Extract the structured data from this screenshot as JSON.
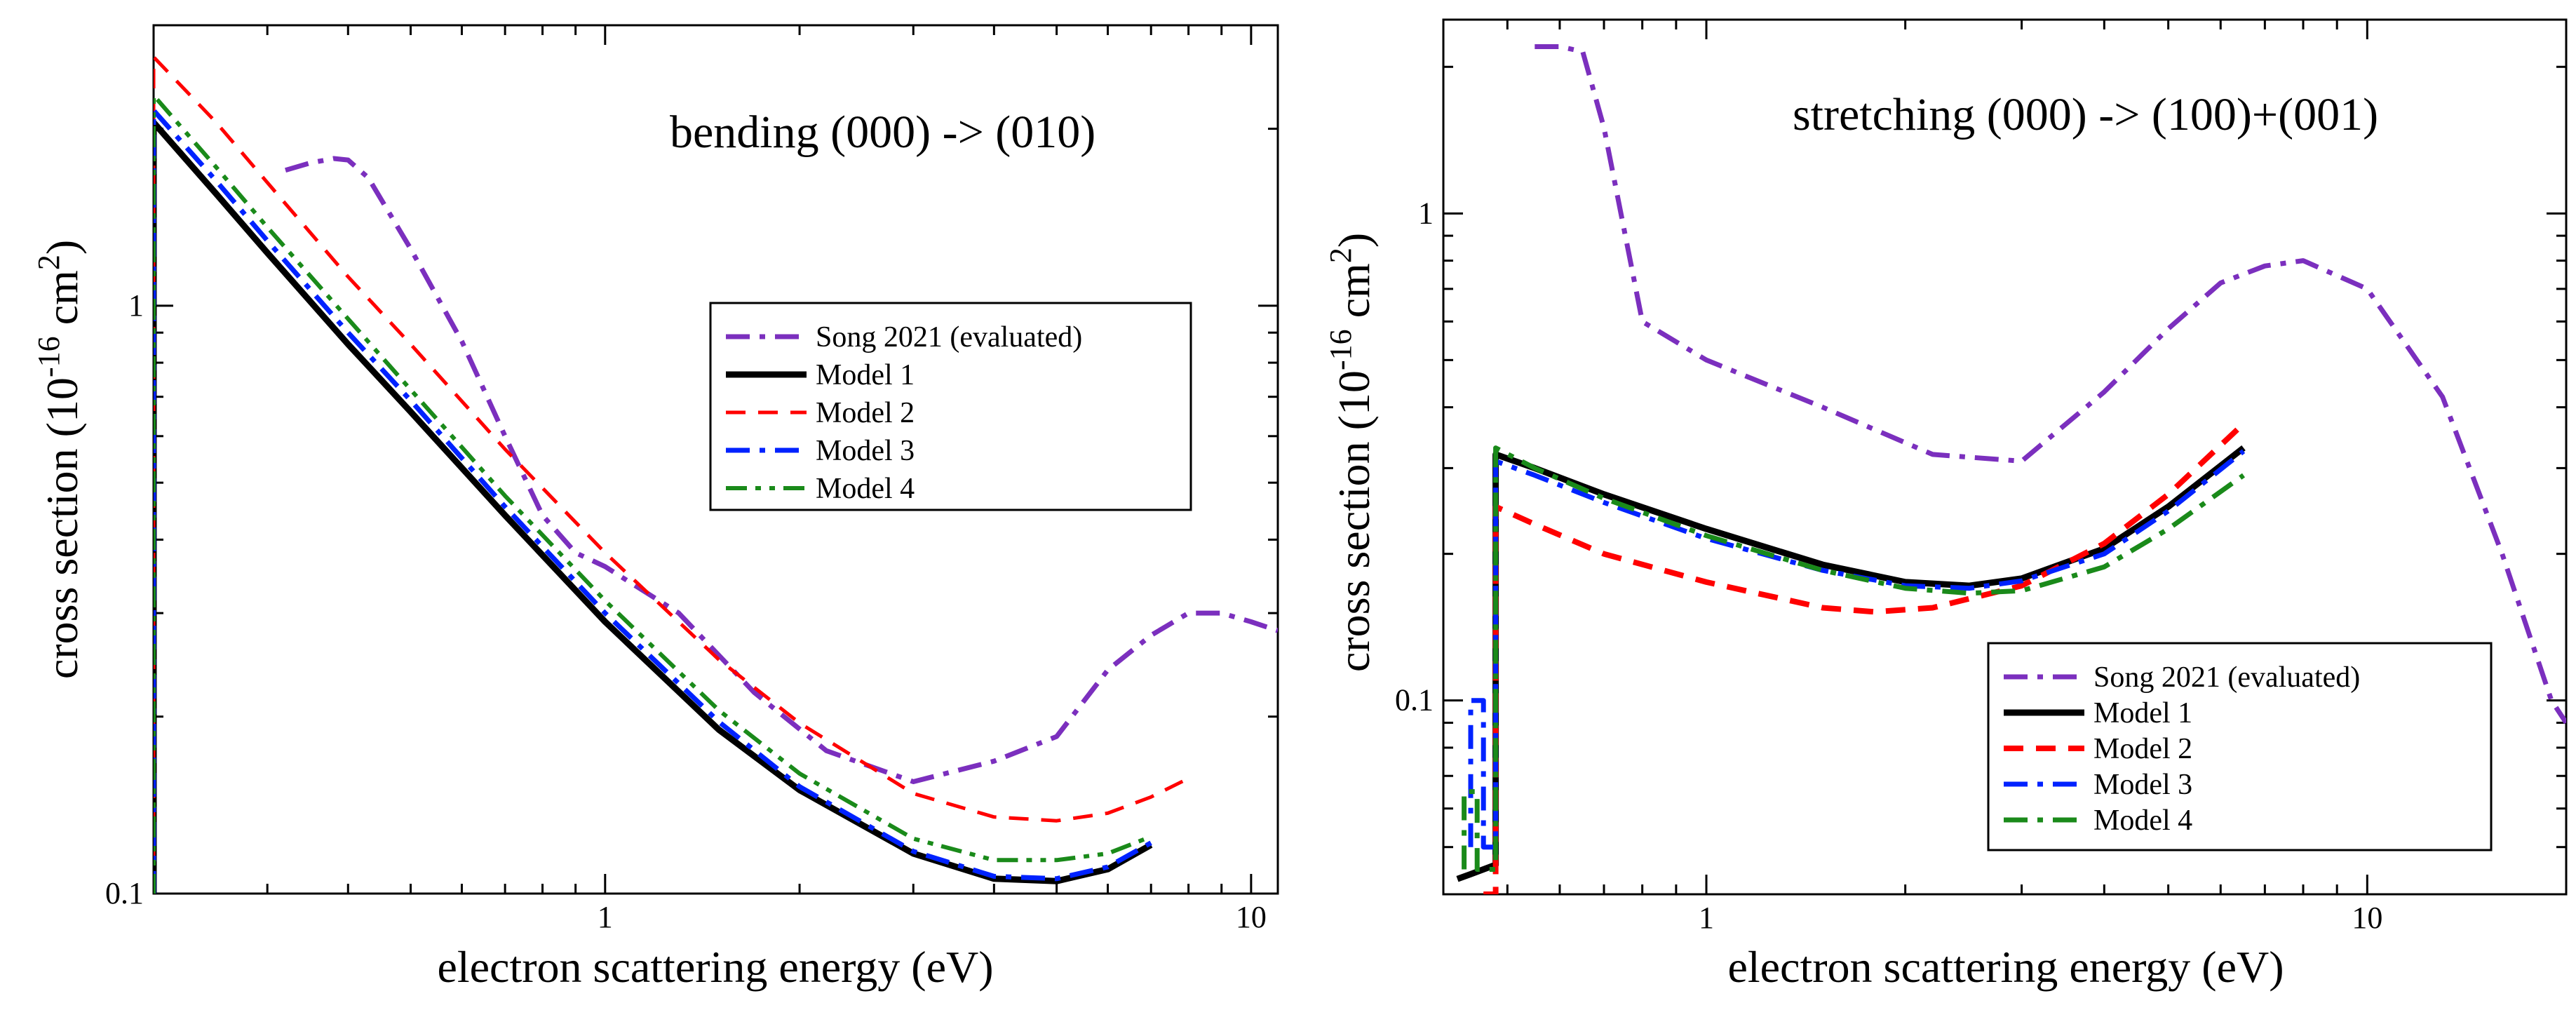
{
  "chart_data": [
    {
      "type": "line",
      "x_scale": "log",
      "y_scale": "log",
      "xlim": [
        0.2,
        11
      ],
      "ylim": [
        0.1,
        3.0
      ],
      "annotation": "bending (000) -> (010)",
      "xlabel": "electron scattering energy (eV)",
      "ylabel": "cross section (10^-16 cm^2)",
      "ylabel_parts": {
        "main": "cross section (10",
        "exp1": "-16",
        "unit": " cm",
        "exp2": "2",
        "close": ")"
      },
      "x_ticks": [
        {
          "value": 1,
          "label": "1"
        },
        {
          "value": 10,
          "label": "10"
        }
      ],
      "y_ticks": [
        {
          "value": 0.1,
          "label": "0.1"
        },
        {
          "value": 1,
          "label": "1"
        }
      ],
      "legend_position": "center-right",
      "series": [
        {
          "name": "Song 2021 (evaluated)",
          "color": "#7b2fbe",
          "dash": "dashdot",
          "width": 7,
          "x": [
            0.32,
            0.35,
            0.38,
            0.4,
            0.43,
            0.5,
            0.6,
            0.7,
            0.8,
            0.9,
            1.0,
            1.3,
            1.7,
            2.2,
            3.0,
            4.0,
            5.0,
            6.0,
            7.0,
            8.0,
            9.0,
            10.0,
            11.0
          ],
          "y": [
            1.7,
            1.75,
            1.78,
            1.77,
            1.65,
            1.25,
            0.87,
            0.6,
            0.44,
            0.38,
            0.36,
            0.3,
            0.22,
            0.175,
            0.155,
            0.168,
            0.185,
            0.24,
            0.275,
            0.3,
            0.3,
            0.29,
            0.28
          ]
        },
        {
          "name": "Model 1",
          "color": "#000000",
          "dash": "solid",
          "width": 9,
          "x": [
            0.199,
            0.2,
            0.2,
            0.25,
            0.3,
            0.4,
            0.5,
            0.7,
            1.0,
            1.5,
            2.0,
            3.0,
            4.0,
            5.0,
            6.0,
            7.0
          ],
          "y": [
            0.1,
            0.1,
            2.05,
            1.55,
            1.23,
            0.86,
            0.66,
            0.44,
            0.29,
            0.19,
            0.15,
            0.117,
            0.106,
            0.105,
            0.11,
            0.121
          ]
        },
        {
          "name": "Model 2",
          "color": "#ff0000",
          "dash": "dashed",
          "width": 5,
          "x": [
            0.199,
            0.2,
            0.2,
            0.25,
            0.3,
            0.4,
            0.5,
            0.7,
            1.0,
            1.5,
            2.0,
            3.0,
            4.0,
            5.0,
            6.0,
            7.0,
            8.0
          ],
          "y": [
            0.1,
            0.1,
            2.65,
            2.05,
            1.62,
            1.12,
            0.86,
            0.57,
            0.38,
            0.25,
            0.195,
            0.148,
            0.135,
            0.133,
            0.137,
            0.146,
            0.157
          ]
        },
        {
          "name": "Model 3",
          "color": "#0022ff",
          "dash": "dashdot",
          "width": 7,
          "x": [
            0.199,
            0.2,
            0.2,
            0.25,
            0.3,
            0.4,
            0.5,
            0.7,
            1.0,
            1.5,
            2.0,
            3.0,
            4.0,
            5.0,
            6.0,
            7.0
          ],
          "y": [
            0.1,
            0.1,
            2.15,
            1.63,
            1.29,
            0.9,
            0.69,
            0.455,
            0.3,
            0.196,
            0.152,
            0.118,
            0.107,
            0.106,
            0.111,
            0.122
          ]
        },
        {
          "name": "Model 4",
          "color": "#1a8a1a",
          "dash": "dashdotdot",
          "width": 6,
          "x": [
            0.199,
            0.2,
            0.2,
            0.25,
            0.3,
            0.4,
            0.5,
            0.7,
            1.0,
            1.5,
            2.0,
            3.0,
            4.0,
            5.0,
            6.0,
            7.0
          ],
          "y": [
            0.1,
            0.1,
            2.28,
            1.72,
            1.36,
            0.95,
            0.72,
            0.475,
            0.315,
            0.205,
            0.16,
            0.124,
            0.114,
            0.114,
            0.117,
            0.125
          ]
        }
      ]
    },
    {
      "type": "line",
      "x_scale": "log",
      "y_scale": "log",
      "xlim": [
        0.4,
        20
      ],
      "ylim": [
        0.04,
        2.5
      ],
      "annotation": "stretching (000) -> (100)+(001)",
      "xlabel": "electron scattering energy (eV)",
      "ylabel": "cross section (10^-16 cm^2)",
      "ylabel_parts": {
        "main": "cross section (10",
        "exp1": "-16",
        "unit": " cm",
        "exp2": "2",
        "close": ")"
      },
      "x_ticks": [
        {
          "value": 1,
          "label": "1"
        },
        {
          "value": 10,
          "label": "10"
        }
      ],
      "y_ticks": [
        {
          "value": 0.1,
          "label": "0.1"
        },
        {
          "value": 1,
          "label": "1"
        }
      ],
      "legend_position": "bottom-right",
      "series": [
        {
          "name": "Song 2021 (evaluated)",
          "color": "#7b2fbe",
          "dash": "dashdot",
          "width": 7,
          "x": [
            0.55,
            0.6,
            0.65,
            0.7,
            0.8,
            1.0,
            1.5,
            2.2,
            3.0,
            4.0,
            5.0,
            6.0,
            7.0,
            8.0,
            10.0,
            13.0,
            16.0,
            19.0,
            20.0
          ],
          "y": [
            2.2,
            2.2,
            2.15,
            1.5,
            0.6,
            0.5,
            0.4,
            0.32,
            0.31,
            0.43,
            0.58,
            0.72,
            0.78,
            0.8,
            0.7,
            0.42,
            0.2,
            0.1,
            0.09
          ]
        },
        {
          "name": "Model 1",
          "color": "#000000",
          "dash": "solid",
          "width": 9,
          "x": [
            0.42,
            0.44,
            0.48,
            0.48,
            0.55,
            0.7,
            1.0,
            1.5,
            2.0,
            2.5,
            3.0,
            4.0,
            5.0,
            6.5
          ],
          "y": [
            0.043,
            0.044,
            0.046,
            0.32,
            0.3,
            0.265,
            0.225,
            0.19,
            0.175,
            0.172,
            0.178,
            0.205,
            0.25,
            0.33
          ]
        },
        {
          "name": "Model 2",
          "color": "#ff0000",
          "dash": "dashed",
          "width": 8,
          "x": [
            0.46,
            0.47,
            0.48,
            0.48,
            0.55,
            0.7,
            1.0,
            1.5,
            1.8,
            2.2,
            3.0,
            4.0,
            5.0,
            6.5
          ],
          "y": [
            0.04,
            0.04,
            0.04,
            0.25,
            0.23,
            0.2,
            0.175,
            0.155,
            0.152,
            0.155,
            0.172,
            0.21,
            0.265,
            0.37
          ]
        },
        {
          "name": "Model 3",
          "color": "#0022ff",
          "dash": "dashdot",
          "width": 7,
          "x": [
            0.44,
            0.44,
            0.46,
            0.46,
            0.48,
            0.48,
            0.55,
            0.7,
            1.0,
            1.5,
            2.0,
            2.5,
            3.0,
            4.0,
            5.0,
            6.5
          ],
          "y": [
            0.05,
            0.1,
            0.1,
            0.05,
            0.05,
            0.31,
            0.29,
            0.255,
            0.215,
            0.185,
            0.172,
            0.17,
            0.176,
            0.2,
            0.245,
            0.325
          ]
        },
        {
          "name": "Model 4",
          "color": "#1a8a1a",
          "dash": "dashdot",
          "width": 7,
          "x": [
            0.43,
            0.43,
            0.45,
            0.45,
            0.48,
            0.48,
            0.55,
            0.7,
            1.0,
            1.5,
            2.0,
            2.5,
            3.0,
            4.0,
            5.0,
            6.5
          ],
          "y": [
            0.045,
            0.065,
            0.065,
            0.045,
            0.045,
            0.33,
            0.3,
            0.26,
            0.218,
            0.185,
            0.17,
            0.166,
            0.168,
            0.188,
            0.225,
            0.29
          ]
        }
      ]
    }
  ]
}
